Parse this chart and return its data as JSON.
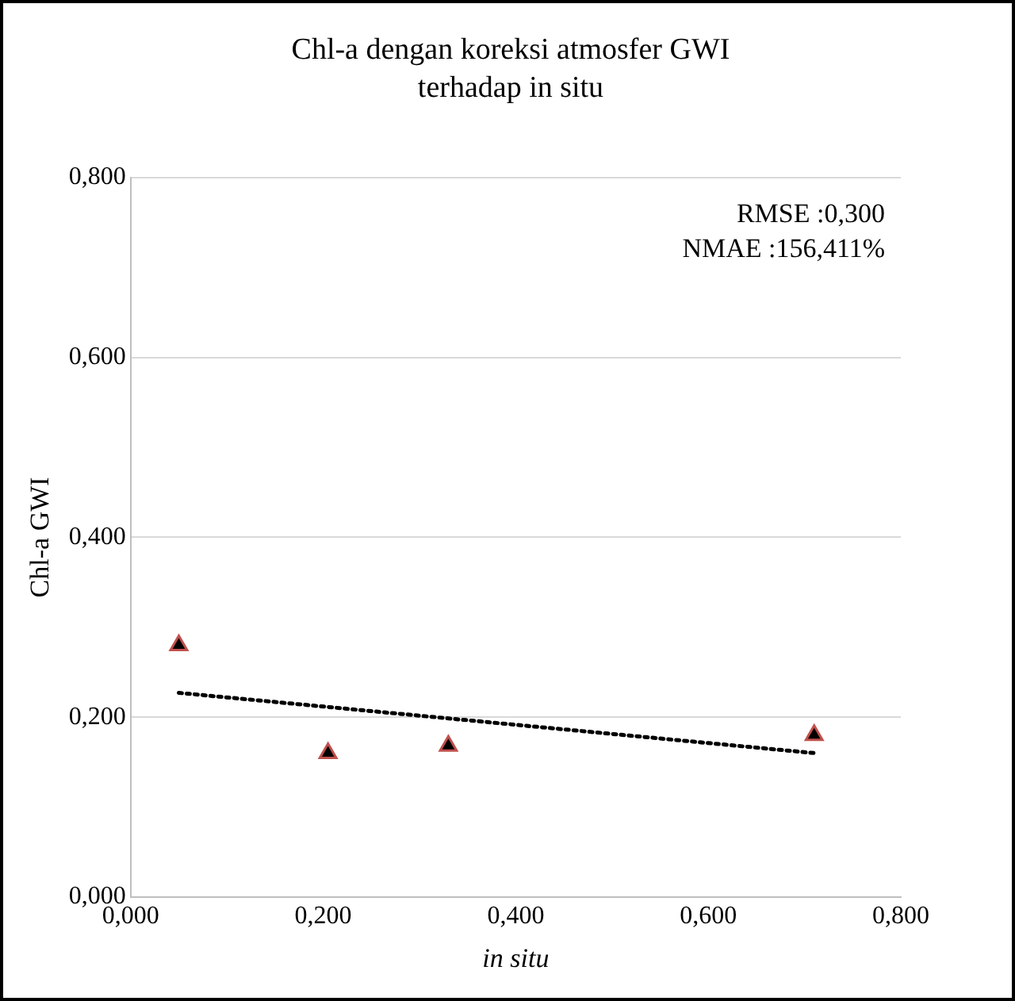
{
  "chart_data": {
    "type": "scatter",
    "title": "Chl-a dengan koreksi atmosfer GWI terhadap in situ",
    "xlabel": "in situ",
    "ylabel": "Chl-a GWI",
    "x": [
      0.05,
      0.205,
      0.33,
      0.71
    ],
    "series": [
      {
        "color": "#000000",
        "values": [
          0.28,
          0.16,
          0.168,
          0.18
        ],
        "marker": "triangle"
      },
      {
        "type": "line",
        "color": "#000000",
        "x": [
          0.05,
          0.71
        ],
        "values": [
          0.227,
          0.16
        ],
        "marker": "none",
        "line_style": "dotted"
      }
    ],
    "xlim": [
      0,
      0.8
    ],
    "ylim": [
      0,
      0.8
    ],
    "xticks": [
      {
        "value": 0,
        "label": "0,000"
      },
      {
        "value": 0.2,
        "label": "0,200"
      },
      {
        "value": 0.4,
        "label": "0,400"
      },
      {
        "value": 0.6,
        "label": "0,600"
      },
      {
        "value": 0.8,
        "label": "0,800"
      }
    ],
    "yticks": [
      {
        "value": 0,
        "label": "0,000"
      },
      {
        "value": 0.2,
        "label": "0,200"
      },
      {
        "value": 0.4,
        "label": "0,400"
      },
      {
        "value": 0.6,
        "label": "0,600"
      },
      {
        "value": 0.8,
        "label": "0,800"
      }
    ],
    "grid": "y",
    "legend": false,
    "annotations": [
      "RMSE :0,300",
      "NMAE :156,411%"
    ]
  }
}
